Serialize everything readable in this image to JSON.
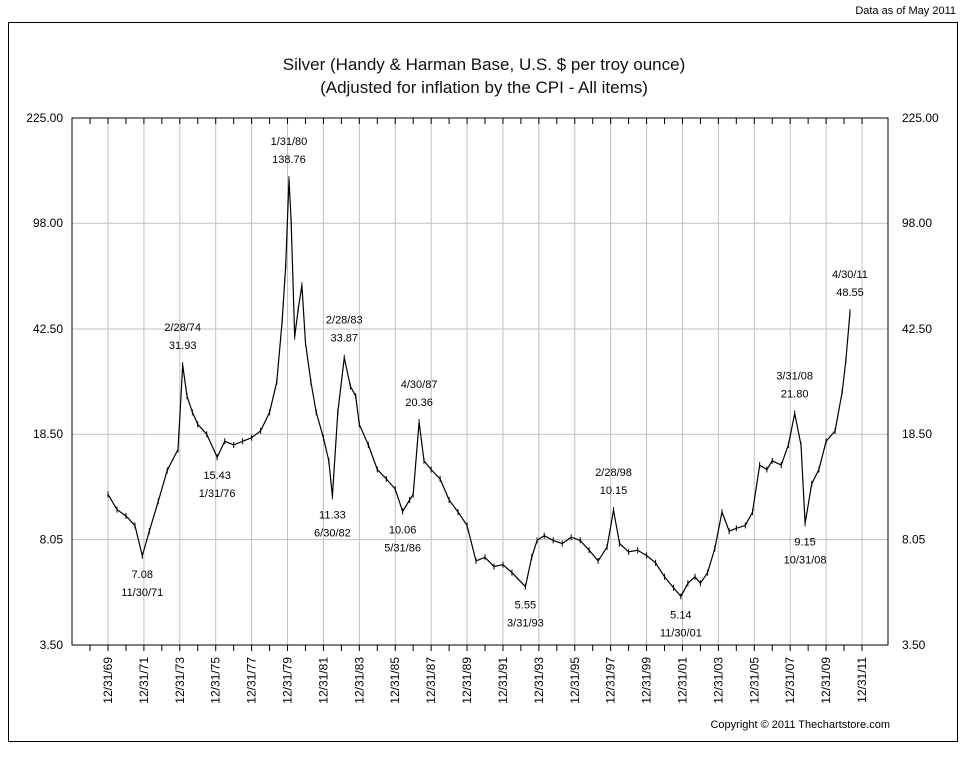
{
  "data_as_of": "Data as of May 2011",
  "copyright": "Copyright © 2011 Thechartstore.com",
  "chart_data": {
    "type": "line",
    "title": "Silver (Handy & Harman Base, U.S. $ per troy ounce)",
    "subtitle": "(Adjusted for inflation by the CPI - All items)",
    "y_scale": "log",
    "ylim": [
      3.5,
      225
    ],
    "y_ticks": [
      "225.00",
      "98.00",
      "42.50",
      "18.50",
      "8.05",
      "3.50"
    ],
    "y_tick_values": [
      225,
      98,
      42.5,
      18.5,
      8.05,
      3.5
    ],
    "xlim": [
      1970.0,
      2012.0
    ],
    "x_ticks": [
      "12/31/69",
      "12/31/71",
      "12/31/73",
      "12/31/75",
      "12/31/77",
      "12/31/79",
      "12/31/81",
      "12/31/83",
      "12/31/85",
      "12/31/87",
      "12/31/89",
      "12/31/91",
      "12/31/93",
      "12/31/95",
      "12/31/97",
      "12/31/99",
      "12/31/01",
      "12/31/03",
      "12/31/05",
      "12/31/07",
      "12/31/09",
      "12/31/11"
    ],
    "grid": true,
    "line_color": "#000000",
    "series": [
      {
        "x": [
          1970.0,
          1970.5,
          1971.0,
          1971.5,
          1971.91,
          1972.3,
          1972.8,
          1973.3,
          1973.9,
          1974.16,
          1974.4,
          1974.7,
          1975.0,
          1975.5,
          1976.08,
          1976.5,
          1977.0,
          1977.5,
          1978.0,
          1978.5,
          1979.0,
          1979.4,
          1979.7,
          1979.9,
          1980.08,
          1980.2,
          1980.4,
          1980.6,
          1980.8,
          1981.0,
          1981.3,
          1981.6,
          1982.0,
          1982.3,
          1982.5,
          1982.8,
          1983.16,
          1983.5,
          1983.8,
          1984.0,
          1984.5,
          1985.0,
          1985.5,
          1986.0,
          1986.41,
          1986.8,
          1987.0,
          1987.33,
          1987.6,
          1988.0,
          1988.5,
          1989.0,
          1989.5,
          1990.0,
          1990.5,
          1991.0,
          1991.5,
          1992.0,
          1992.5,
          1993.25,
          1993.6,
          1993.9,
          1994.3,
          1994.8,
          1995.3,
          1995.8,
          1996.3,
          1996.8,
          1997.3,
          1997.8,
          1998.16,
          1998.5,
          1999.0,
          1999.5,
          2000.0,
          2000.5,
          2001.0,
          2001.5,
          2001.91,
          2002.3,
          2002.7,
          2003.0,
          2003.4,
          2003.8,
          2004.2,
          2004.6,
          2005.0,
          2005.5,
          2005.9,
          2006.3,
          2006.7,
          2007.0,
          2007.5,
          2007.9,
          2008.25,
          2008.6,
          2008.83,
          2009.2,
          2009.6,
          2010.0,
          2010.5,
          2010.9,
          2011.1,
          2011.33
        ],
        "values": [
          11.5,
          10.2,
          9.7,
          9.0,
          7.08,
          8.6,
          10.9,
          13.9,
          16.4,
          31.93,
          25,
          22,
          20,
          18.5,
          15.43,
          17.5,
          17,
          17.5,
          18,
          19,
          22,
          28,
          45,
          70,
          138.76,
          100,
          40,
          50,
          60,
          38,
          28,
          22,
          18,
          15,
          11.33,
          22,
          33.87,
          27,
          25,
          20,
          17,
          14,
          13,
          12,
          10.06,
          11,
          11.5,
          20.36,
          15,
          14,
          13,
          11,
          10,
          9,
          6.8,
          7,
          6.5,
          6.6,
          6.2,
          5.55,
          7.0,
          8.0,
          8.3,
          8.0,
          7.8,
          8.2,
          8.0,
          7.4,
          6.8,
          7.6,
          10.15,
          7.8,
          7.3,
          7.4,
          7.1,
          6.7,
          6.0,
          5.5,
          5.14,
          5.7,
          6.0,
          5.7,
          6.2,
          7.5,
          10.0,
          8.6,
          8.8,
          9.0,
          10.0,
          14.5,
          14,
          15,
          14.5,
          17,
          21.8,
          17,
          9.15,
          12.5,
          14,
          17.5,
          19,
          26,
          33,
          48.55
        ]
      }
    ],
    "annotations": [
      {
        "date": "1/31/80",
        "value": "138.76",
        "x": 1980.08,
        "y": 138.76,
        "pos": "above"
      },
      {
        "date": "2/28/74",
        "value": "31.93",
        "x": 1974.16,
        "y": 31.93,
        "pos": "above"
      },
      {
        "date": "2/28/83",
        "value": "33.87",
        "x": 1983.16,
        "y": 33.87,
        "pos": "above"
      },
      {
        "date": "4/30/87",
        "value": "20.36",
        "x": 1987.33,
        "y": 20.36,
        "pos": "above"
      },
      {
        "date": "2/28/98",
        "value": "10.15",
        "x": 1998.16,
        "y": 10.15,
        "pos": "above"
      },
      {
        "date": "3/31/08",
        "value": "21.80",
        "x": 2008.25,
        "y": 21.8,
        "pos": "above"
      },
      {
        "date": "4/30/11",
        "value": "48.55",
        "x": 2011.33,
        "y": 48.55,
        "pos": "above"
      },
      {
        "date": "11/30/71",
        "value": "7.08",
        "x": 1971.91,
        "y": 7.08,
        "pos": "below"
      },
      {
        "date": "1/31/76",
        "value": "15.43",
        "x": 1976.08,
        "y": 15.43,
        "pos": "below"
      },
      {
        "date": "6/30/82",
        "value": "11.33",
        "x": 1982.5,
        "y": 11.33,
        "pos": "below"
      },
      {
        "date": "5/31/86",
        "value": "10.06",
        "x": 1986.41,
        "y": 10.06,
        "pos": "below"
      },
      {
        "date": "3/31/93",
        "value": "5.55",
        "x": 1993.25,
        "y": 5.55,
        "pos": "below"
      },
      {
        "date": "11/30/01",
        "value": "5.14",
        "x": 2001.91,
        "y": 5.14,
        "pos": "below"
      },
      {
        "date": "10/31/08",
        "value": "9.15",
        "x": 2008.83,
        "y": 9.15,
        "pos": "below"
      }
    ]
  }
}
